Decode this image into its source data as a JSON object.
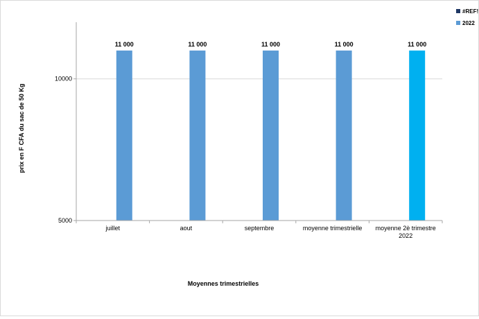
{
  "chart_data": {
    "type": "bar",
    "title": "",
    "xlabel": "Moyennes trimestrielles",
    "ylabel": "prix en F CFA du sac de 50 Kg",
    "categories": [
      "juillet",
      "aout",
      "septembre",
      "moyenne trimestrielle",
      "moyenne 2è  trimestre 2022"
    ],
    "yticks": [
      "5000",
      "10000"
    ],
    "ylim": [
      5000,
      12000
    ],
    "grid": true,
    "legend_position": "top-right",
    "series": [
      {
        "name": "#REF!",
        "color": "#1f3864",
        "values": [
          null,
          null,
          null,
          null,
          null
        ],
        "labels": [
          "",
          "",
          "",
          "",
          ""
        ]
      },
      {
        "name": "2022",
        "color": "#5b9bd5",
        "values": [
          11000,
          11000,
          11000,
          11000,
          11000
        ],
        "labels": [
          "11 000",
          "11 000",
          "11 000",
          "11 000",
          "11 000"
        ]
      }
    ],
    "highlight_color": "#00b0f0",
    "highlight_index": 4
  }
}
